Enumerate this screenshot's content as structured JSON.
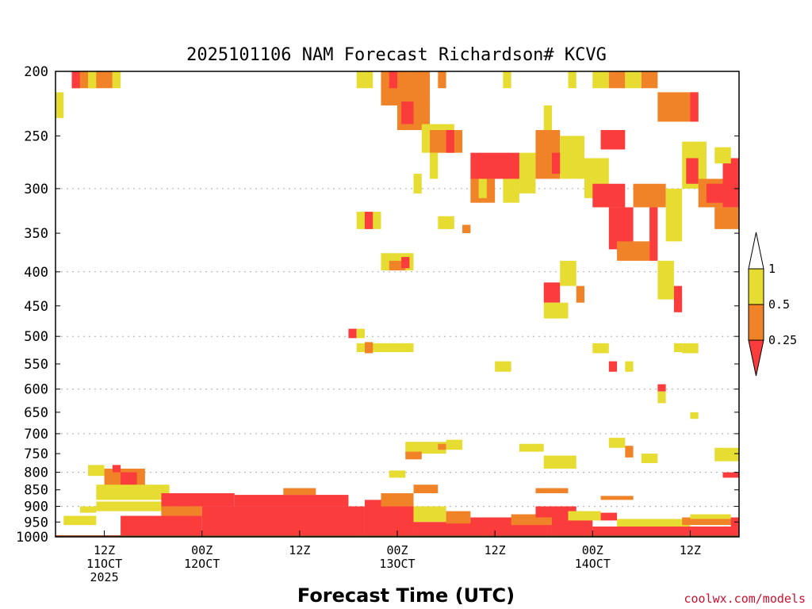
{
  "chart_data": {
    "type": "heatmap",
    "title": "2025101106 NAM Forecast Richardson# KCVG",
    "xlabel": "Forecast Time (UTC)",
    "ylabel": "",
    "credit": "coolwx.com/models",
    "y_scale": "log",
    "ylim": [
      1000,
      200
    ],
    "y_ticks": [
      200,
      250,
      300,
      350,
      400,
      450,
      500,
      550,
      600,
      650,
      700,
      750,
      800,
      850,
      900,
      950,
      1000
    ],
    "grid_levels": [
      300,
      400,
      500,
      600,
      700,
      800,
      900
    ],
    "xlim": [
      "2025-10-11T06:00",
      "2025-10-14T18:00"
    ],
    "x_ticks": [
      {
        "time": "2025-10-11T12:00",
        "lines": [
          "12Z",
          "11OCT",
          "2025"
        ]
      },
      {
        "time": "2025-10-12T00:00",
        "lines": [
          "00Z",
          "12OCT"
        ]
      },
      {
        "time": "2025-10-12T12:00",
        "lines": [
          "12Z"
        ]
      },
      {
        "time": "2025-10-13T00:00",
        "lines": [
          "00Z",
          "13OCT"
        ]
      },
      {
        "time": "2025-10-13T12:00",
        "lines": [
          "12Z"
        ]
      },
      {
        "time": "2025-10-14T00:00",
        "lines": [
          "00Z",
          "14OCT"
        ]
      },
      {
        "time": "2025-10-14T12:00",
        "lines": [
          "12Z"
        ]
      }
    ],
    "legend": {
      "placement": "right",
      "levels": [
        "1",
        "0.5",
        "0.25"
      ],
      "bins": [
        {
          "range": "> 1",
          "color": "#ffffff"
        },
        {
          "range": "0.5 - 1",
          "color": "#e6dc32"
        },
        {
          "range": "0.25 - 0.5",
          "color": "#f08228"
        },
        {
          "range": "< 0.25",
          "color": "#fa3c3c"
        }
      ]
    },
    "colors": {
      "yellow": "#e6dc32",
      "orange": "#f08228",
      "red": "#fa3c3c",
      "ground": "#a0522d",
      "grid": "#aaaaaa"
    },
    "ground_level": 1000,
    "regions": [
      {
        "t0": "2025-10-11T08:00",
        "t1": "2025-10-11T13:00",
        "p0": 200,
        "p1": 212,
        "v": "O"
      },
      {
        "t0": "2025-10-11T08:00",
        "t1": "2025-10-11T09:00",
        "p0": 200,
        "p1": 212,
        "v": "R"
      },
      {
        "t0": "2025-10-11T10:00",
        "t1": "2025-10-11T11:00",
        "p0": 200,
        "p1": 212,
        "v": "Y"
      },
      {
        "t0": "2025-10-11T13:00",
        "t1": "2025-10-11T14:00",
        "p0": 200,
        "p1": 212,
        "v": "Y"
      },
      {
        "t0": "2025-10-11T06:00",
        "t1": "2025-10-11T07:00",
        "p0": 215,
        "p1": 235,
        "v": "Y"
      },
      {
        "t0": "2025-10-12T19:00",
        "t1": "2025-10-12T21:00",
        "p0": 200,
        "p1": 212,
        "v": "Y"
      },
      {
        "t0": "2025-10-12T22:00",
        "t1": "2025-10-13T04:00",
        "p0": 200,
        "p1": 225,
        "v": "O"
      },
      {
        "t0": "2025-10-12T23:00",
        "t1": "2025-10-13T00:00",
        "p0": 200,
        "p1": 212,
        "v": "R"
      },
      {
        "t0": "2025-10-13T00:00",
        "t1": "2025-10-13T04:00",
        "p0": 220,
        "p1": 245,
        "v": "O"
      },
      {
        "t0": "2025-10-13T00:30",
        "t1": "2025-10-13T02:00",
        "p0": 222,
        "p1": 240,
        "v": "R"
      },
      {
        "t0": "2025-10-13T03:00",
        "t1": "2025-10-13T07:00",
        "p0": 240,
        "p1": 265,
        "v": "Y"
      },
      {
        "t0": "2025-10-13T04:00",
        "t1": "2025-10-13T08:00",
        "p0": 245,
        "p1": 265,
        "v": "O"
      },
      {
        "t0": "2025-10-13T06:00",
        "t1": "2025-10-13T07:00",
        "p0": 245,
        "p1": 265,
        "v": "R"
      },
      {
        "t0": "2025-10-13T04:00",
        "t1": "2025-10-13T05:00",
        "p0": 265,
        "p1": 290,
        "v": "Y"
      },
      {
        "t0": "2025-10-13T05:00",
        "t1": "2025-10-13T06:00",
        "p0": 200,
        "p1": 212,
        "v": "O"
      },
      {
        "t0": "2025-10-13T09:00",
        "t1": "2025-10-13T15:00",
        "p0": 265,
        "p1": 290,
        "v": "R"
      },
      {
        "t0": "2025-10-13T15:00",
        "t1": "2025-10-13T17:00",
        "p0": 265,
        "p1": 305,
        "v": "Y"
      },
      {
        "t0": "2025-10-13T09:00",
        "t1": "2025-10-13T12:00",
        "p0": 290,
        "p1": 315,
        "v": "O"
      },
      {
        "t0": "2025-10-13T10:00",
        "t1": "2025-10-13T11:00",
        "p0": 290,
        "p1": 310,
        "v": "Y"
      },
      {
        "t0": "2025-10-13T13:00",
        "t1": "2025-10-13T15:00",
        "p0": 290,
        "p1": 315,
        "v": "Y"
      },
      {
        "t0": "2025-10-13T08:00",
        "t1": "2025-10-13T09:00",
        "p0": 340,
        "p1": 350,
        "v": "O"
      },
      {
        "t0": "2025-10-13T13:00",
        "t1": "2025-10-13T14:00",
        "p0": 200,
        "p1": 212,
        "v": "Y"
      },
      {
        "t0": "2025-10-13T17:00",
        "t1": "2025-10-13T20:00",
        "p0": 245,
        "p1": 290,
        "v": "O"
      },
      {
        "t0": "2025-10-13T19:00",
        "t1": "2025-10-13T21:00",
        "p0": 265,
        "p1": 285,
        "v": "R"
      },
      {
        "t0": "2025-10-13T20:00",
        "t1": "2025-10-13T23:00",
        "p0": 250,
        "p1": 290,
        "v": "Y"
      },
      {
        "t0": "2025-10-13T18:00",
        "t1": "2025-10-13T19:00",
        "p0": 225,
        "p1": 245,
        "v": "Y"
      },
      {
        "t0": "2025-10-13T21:00",
        "t1": "2025-10-13T22:00",
        "p0": 200,
        "p1": 212,
        "v": "Y"
      },
      {
        "t0": "2025-10-14T00:00",
        "t1": "2025-10-14T02:00",
        "p0": 200,
        "p1": 212,
        "v": "Y"
      },
      {
        "t0": "2025-10-14T02:00",
        "t1": "2025-10-14T04:00",
        "p0": 200,
        "p1": 212,
        "v": "O"
      },
      {
        "t0": "2025-10-14T04:00",
        "t1": "2025-10-14T06:00",
        "p0": 200,
        "p1": 212,
        "v": "Y"
      },
      {
        "t0": "2025-10-14T06:00",
        "t1": "2025-10-14T08:00",
        "p0": 200,
        "p1": 212,
        "v": "O"
      },
      {
        "t0": "2025-10-14T08:00",
        "t1": "2025-10-14T13:00",
        "p0": 215,
        "p1": 238,
        "v": "O"
      },
      {
        "t0": "2025-10-14T12:00",
        "t1": "2025-10-14T13:00",
        "p0": 215,
        "p1": 238,
        "v": "R"
      },
      {
        "t0": "2025-10-14T01:00",
        "t1": "2025-10-14T04:00",
        "p0": 245,
        "p1": 262,
        "v": "R"
      },
      {
        "t0": "2025-10-13T23:00",
        "t1": "2025-10-14T02:00",
        "p0": 270,
        "p1": 310,
        "v": "Y"
      },
      {
        "t0": "2025-10-14T00:00",
        "t1": "2025-10-14T04:00",
        "p0": 295,
        "p1": 320,
        "v": "R"
      },
      {
        "t0": "2025-10-14T02:00",
        "t1": "2025-10-14T05:00",
        "p0": 320,
        "p1": 370,
        "v": "R"
      },
      {
        "t0": "2025-10-14T03:00",
        "t1": "2025-10-14T07:00",
        "p0": 360,
        "p1": 385,
        "v": "O"
      },
      {
        "t0": "2025-10-14T05:00",
        "t1": "2025-10-14T09:00",
        "p0": 295,
        "p1": 320,
        "v": "O"
      },
      {
        "t0": "2025-10-14T07:00",
        "t1": "2025-10-14T08:00",
        "p0": 320,
        "p1": 385,
        "v": "R"
      },
      {
        "t0": "2025-10-14T09:00",
        "t1": "2025-10-14T11:00",
        "p0": 300,
        "p1": 360,
        "v": "Y"
      },
      {
        "t0": "2025-10-14T08:00",
        "t1": "2025-10-14T10:00",
        "p0": 385,
        "p1": 440,
        "v": "Y"
      },
      {
        "t0": "2025-10-14T10:00",
        "t1": "2025-10-14T11:00",
        "p0": 420,
        "p1": 460,
        "v": "R"
      },
      {
        "t0": "2025-10-14T11:00",
        "t1": "2025-10-14T14:00",
        "p0": 255,
        "p1": 300,
        "v": "Y"
      },
      {
        "t0": "2025-10-14T11:30",
        "t1": "2025-10-14T13:00",
        "p0": 270,
        "p1": 295,
        "v": "R"
      },
      {
        "t0": "2025-10-14T13:00",
        "t1": "2025-10-14T16:00",
        "p0": 290,
        "p1": 320,
        "v": "O"
      },
      {
        "t0": "2025-10-14T14:00",
        "t1": "2025-10-14T16:00",
        "p0": 295,
        "p1": 315,
        "v": "R"
      },
      {
        "t0": "2025-10-14T16:00",
        "t1": "2025-10-14T18:00",
        "p0": 270,
        "p1": 320,
        "v": "R"
      },
      {
        "t0": "2025-10-14T15:00",
        "t1": "2025-10-14T18:00",
        "p0": 320,
        "p1": 345,
        "v": "O"
      },
      {
        "t0": "2025-10-14T15:00",
        "t1": "2025-10-14T17:00",
        "p0": 260,
        "p1": 275,
        "v": "Y"
      },
      {
        "t0": "2025-10-12T19:00",
        "t1": "2025-10-12T22:00",
        "p0": 325,
        "p1": 345,
        "v": "Y"
      },
      {
        "t0": "2025-10-12T20:00",
        "t1": "2025-10-12T21:00",
        "p0": 325,
        "p1": 345,
        "v": "R"
      },
      {
        "t0": "2025-10-13T05:00",
        "t1": "2025-10-13T07:00",
        "p0": 330,
        "p1": 345,
        "v": "Y"
      },
      {
        "t0": "2025-10-13T02:00",
        "t1": "2025-10-13T03:00",
        "p0": 285,
        "p1": 305,
        "v": "Y"
      },
      {
        "t0": "2025-10-12T22:00",
        "t1": "2025-10-13T02:00",
        "p0": 375,
        "p1": 398,
        "v": "Y"
      },
      {
        "t0": "2025-10-12T23:00",
        "t1": "2025-10-13T01:00",
        "p0": 385,
        "p1": 398,
        "v": "O"
      },
      {
        "t0": "2025-10-13T00:30",
        "t1": "2025-10-13T01:30",
        "p0": 380,
        "p1": 395,
        "v": "R"
      },
      {
        "t0": "2025-10-13T18:00",
        "t1": "2025-10-13T20:00",
        "p0": 415,
        "p1": 445,
        "v": "R"
      },
      {
        "t0": "2025-10-13T18:00",
        "t1": "2025-10-13T21:00",
        "p0": 445,
        "p1": 470,
        "v": "Y"
      },
      {
        "t0": "2025-10-13T20:00",
        "t1": "2025-10-13T22:00",
        "p0": 385,
        "p1": 420,
        "v": "Y"
      },
      {
        "t0": "2025-10-13T22:00",
        "t1": "2025-10-13T23:00",
        "p0": 420,
        "p1": 445,
        "v": "O"
      },
      {
        "t0": "2025-10-12T18:00",
        "t1": "2025-10-12T19:00",
        "p0": 487,
        "p1": 503,
        "v": "R"
      },
      {
        "t0": "2025-10-12T19:00",
        "t1": "2025-10-12T20:00",
        "p0": 487,
        "p1": 503,
        "v": "Y"
      },
      {
        "t0": "2025-10-12T19:00",
        "t1": "2025-10-13T02:00",
        "p0": 512,
        "p1": 528,
        "v": "Y"
      },
      {
        "t0": "2025-10-12T20:00",
        "t1": "2025-10-12T21:00",
        "p0": 510,
        "p1": 530,
        "v": "O"
      },
      {
        "t0": "2025-10-14T00:00",
        "t1": "2025-10-14T02:00",
        "p0": 512,
        "p1": 530,
        "v": "Y"
      },
      {
        "t0": "2025-10-14T10:00",
        "t1": "2025-10-14T11:00",
        "p0": 512,
        "p1": 528,
        "v": "Y"
      },
      {
        "t0": "2025-10-14T11:00",
        "t1": "2025-10-14T13:00",
        "p0": 512,
        "p1": 530,
        "v": "Y"
      },
      {
        "t0": "2025-10-13T12:00",
        "t1": "2025-10-13T14:00",
        "p0": 545,
        "p1": 565,
        "v": "Y"
      },
      {
        "t0": "2025-10-14T02:00",
        "t1": "2025-10-14T03:00",
        "p0": 545,
        "p1": 565,
        "v": "R"
      },
      {
        "t0": "2025-10-14T04:00",
        "t1": "2025-10-14T05:00",
        "p0": 545,
        "p1": 565,
        "v": "Y"
      },
      {
        "t0": "2025-10-14T08:00",
        "t1": "2025-10-14T09:00",
        "p0": 590,
        "p1": 605,
        "v": "R"
      },
      {
        "t0": "2025-10-14T08:00",
        "t1": "2025-10-14T09:00",
        "p0": 605,
        "p1": 630,
        "v": "Y"
      },
      {
        "t0": "2025-10-14T12:00",
        "t1": "2025-10-14T13:00",
        "p0": 650,
        "p1": 665,
        "v": "Y"
      },
      {
        "t0": "2025-10-13T01:00",
        "t1": "2025-10-13T06:00",
        "p0": 720,
        "p1": 750,
        "v": "Y"
      },
      {
        "t0": "2025-10-13T06:00",
        "t1": "2025-10-13T08:00",
        "p0": 715,
        "p1": 740,
        "v": "Y"
      },
      {
        "t0": "2025-10-13T05:00",
        "t1": "2025-10-13T06:00",
        "p0": 725,
        "p1": 740,
        "v": "O"
      },
      {
        "t0": "2025-10-13T01:00",
        "t1": "2025-10-13T03:00",
        "p0": 745,
        "p1": 765,
        "v": "O"
      },
      {
        "t0": "2025-10-13T15:00",
        "t1": "2025-10-13T18:00",
        "p0": 725,
        "p1": 745,
        "v": "Y"
      },
      {
        "t0": "2025-10-13T18:00",
        "t1": "2025-10-13T22:00",
        "p0": 755,
        "p1": 790,
        "v": "Y"
      },
      {
        "t0": "2025-10-14T02:00",
        "t1": "2025-10-14T04:00",
        "p0": 710,
        "p1": 735,
        "v": "Y"
      },
      {
        "t0": "2025-10-14T04:00",
        "t1": "2025-10-14T05:00",
        "p0": 730,
        "p1": 760,
        "v": "O"
      },
      {
        "t0": "2025-10-14T06:00",
        "t1": "2025-10-14T08:00",
        "p0": 750,
        "p1": 775,
        "v": "Y"
      },
      {
        "t0": "2025-10-14T15:00",
        "t1": "2025-10-14T18:00",
        "p0": 735,
        "p1": 770,
        "v": "Y"
      },
      {
        "t0": "2025-10-14T16:00",
        "t1": "2025-10-14T18:00",
        "p0": 800,
        "p1": 815,
        "v": "R"
      },
      {
        "t0": "2025-10-11T10:00",
        "t1": "2025-10-11T12:00",
        "p0": 780,
        "p1": 810,
        "v": "Y"
      },
      {
        "t0": "2025-10-11T12:00",
        "t1": "2025-10-11T17:00",
        "p0": 790,
        "p1": 860,
        "v": "O"
      },
      {
        "t0": "2025-10-11T13:00",
        "t1": "2025-10-11T14:00",
        "p0": 780,
        "p1": 800,
        "v": "R"
      },
      {
        "t0": "2025-10-11T14:00",
        "t1": "2025-10-11T16:00",
        "p0": 800,
        "p1": 840,
        "v": "R"
      },
      {
        "t0": "2025-10-11T11:00",
        "t1": "2025-10-11T20:00",
        "p0": 835,
        "p1": 880,
        "v": "Y"
      },
      {
        "t0": "2025-10-11T09:00",
        "t1": "2025-10-11T11:00",
        "p0": 900,
        "p1": 920,
        "v": "Y"
      },
      {
        "t0": "2025-10-12T23:00",
        "t1": "2025-10-13T01:00",
        "p0": 795,
        "p1": 815,
        "v": "Y"
      },
      {
        "t0": "2025-10-13T02:00",
        "t1": "2025-10-13T05:00",
        "p0": 835,
        "p1": 860,
        "v": "O"
      },
      {
        "t0": "2025-10-13T17:00",
        "t1": "2025-10-13T21:00",
        "p0": 845,
        "p1": 860,
        "v": "O"
      },
      {
        "t0": "2025-10-14T01:00",
        "t1": "2025-10-14T05:00",
        "p0": 868,
        "p1": 880,
        "v": "O"
      },
      {
        "t0": "2025-10-11T07:00",
        "t1": "2025-10-11T11:00",
        "p0": 930,
        "p1": 960,
        "v": "Y"
      },
      {
        "t0": "2025-10-11T11:00",
        "t1": "2025-10-11T20:00",
        "p0": 885,
        "p1": 915,
        "v": "Y"
      },
      {
        "t0": "2025-10-11T19:00",
        "t1": "2025-10-12T04:00",
        "p0": 860,
        "p1": 900,
        "v": "R"
      },
      {
        "t0": "2025-10-11T19:00",
        "t1": "2025-10-12T00:00",
        "p0": 900,
        "p1": 930,
        "v": "O"
      },
      {
        "t0": "2025-10-11T14:00",
        "t1": "2025-10-12T00:00",
        "p0": 930,
        "p1": 995,
        "v": "R"
      },
      {
        "t0": "2025-10-12T00:00",
        "t1": "2025-10-12T20:00",
        "p0": 900,
        "p1": 995,
        "v": "R"
      },
      {
        "t0": "2025-10-12T04:00",
        "t1": "2025-10-12T18:00",
        "p0": 865,
        "p1": 900,
        "v": "R"
      },
      {
        "t0": "2025-10-12T10:00",
        "t1": "2025-10-12T14:00",
        "p0": 845,
        "p1": 865,
        "v": "O"
      },
      {
        "t0": "2025-10-12T20:00",
        "t1": "2025-10-13T02:00",
        "p0": 880,
        "p1": 995,
        "v": "R"
      },
      {
        "t0": "2025-10-12T22:00",
        "t1": "2025-10-13T02:00",
        "p0": 860,
        "p1": 900,
        "v": "O"
      },
      {
        "t0": "2025-10-13T02:00",
        "t1": "2025-10-13T06:00",
        "p0": 900,
        "p1": 950,
        "v": "Y"
      },
      {
        "t0": "2025-10-13T02:00",
        "t1": "2025-10-13T10:00",
        "p0": 950,
        "p1": 995,
        "v": "R"
      },
      {
        "t0": "2025-10-13T06:00",
        "t1": "2025-10-13T09:00",
        "p0": 915,
        "p1": 955,
        "v": "O"
      },
      {
        "t0": "2025-10-13T09:00",
        "t1": "2025-10-13T19:00",
        "p0": 935,
        "p1": 995,
        "v": "R"
      },
      {
        "t0": "2025-10-13T14:00",
        "t1": "2025-10-13T19:00",
        "p0": 925,
        "p1": 960,
        "v": "O"
      },
      {
        "t0": "2025-10-13T17:00",
        "t1": "2025-10-13T22:00",
        "p0": 900,
        "p1": 935,
        "v": "R"
      },
      {
        "t0": "2025-10-13T19:00",
        "t1": "2025-10-14T00:00",
        "p0": 935,
        "p1": 995,
        "v": "R"
      },
      {
        "t0": "2025-10-13T21:00",
        "t1": "2025-10-14T01:00",
        "p0": 915,
        "p1": 945,
        "v": "Y"
      },
      {
        "t0": "2025-10-14T00:00",
        "t1": "2025-10-14T18:00",
        "p0": 965,
        "p1": 995,
        "v": "R"
      },
      {
        "t0": "2025-10-14T01:00",
        "t1": "2025-10-14T03:00",
        "p0": 920,
        "p1": 945,
        "v": "R"
      },
      {
        "t0": "2025-10-14T03:00",
        "t1": "2025-10-14T12:00",
        "p0": 940,
        "p1": 965,
        "v": "Y"
      },
      {
        "t0": "2025-10-14T11:00",
        "t1": "2025-10-14T18:00",
        "p0": 935,
        "p1": 960,
        "v": "O"
      },
      {
        "t0": "2025-10-14T12:00",
        "t1": "2025-10-14T17:00",
        "p0": 925,
        "p1": 940,
        "v": "Y"
      },
      {
        "t0": "2025-10-14T17:00",
        "t1": "2025-10-14T18:00",
        "p0": 935,
        "p1": 965,
        "v": "R"
      }
    ]
  }
}
